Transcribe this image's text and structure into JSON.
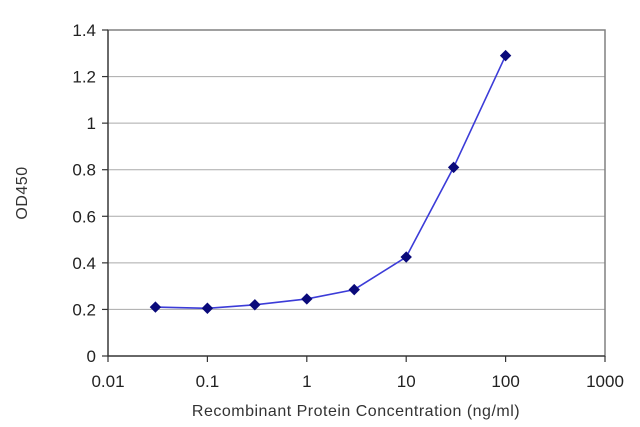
{
  "chart_data": {
    "type": "line",
    "title": "",
    "xlabel": "Recombinant Protein Concentration (ng/ml)",
    "ylabel": "OD450",
    "x_scale": "log",
    "xlim": [
      0.01,
      1000
    ],
    "ylim": [
      0,
      1.4
    ],
    "x_ticks": [
      "0.01",
      "0.1",
      "1",
      "10",
      "100",
      "1000"
    ],
    "y_ticks": [
      "0",
      "0.2",
      "0.4",
      "0.6",
      "0.8",
      "1",
      "1.2",
      "1.4"
    ],
    "grid": "horizontal",
    "legend": "none",
    "series": [
      {
        "x": [
          0.03,
          0.1,
          0.3,
          1,
          3,
          10,
          30,
          100
        ],
        "y": [
          0.21,
          0.205,
          0.22,
          0.245,
          0.285,
          0.425,
          0.81,
          1.29
        ],
        "line_color": "#3c3cd8",
        "marker_color": "#0a0a7a",
        "marker": "diamond"
      }
    ],
    "plot_border_color": "#808080",
    "grid_color": "#aaaaaa"
  }
}
